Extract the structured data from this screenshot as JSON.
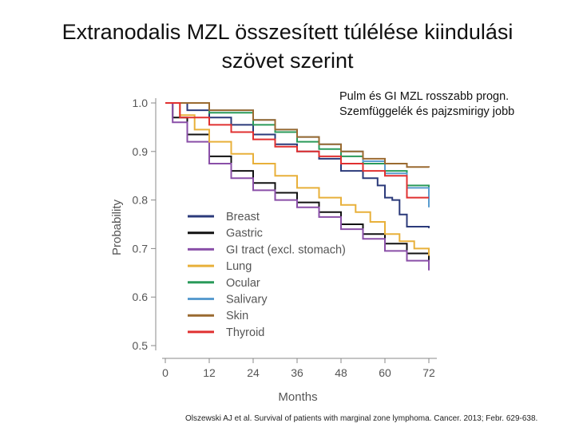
{
  "slide": {
    "title": "Extranodalis MZL összesített túlélése kiindulási szövet szerint",
    "annotation_line1": "Pulm és GI  MZL rosszabb progn.",
    "annotation_line2": "Szemfüggelék és pajzsmirigy jobb",
    "citation": "Olszewski AJ et al. Survival of patients with marginal zone lymphoma. Cancer. 2013; Febr. 629-638."
  },
  "chart_data": {
    "type": "line",
    "title": "",
    "xlabel": "Months",
    "ylabel": "Probability",
    "xlim": [
      0,
      72
    ],
    "ylim": [
      0.5,
      1.0
    ],
    "xticks": [
      0,
      12,
      24,
      36,
      48,
      60,
      72
    ],
    "xtick_labels": [
      "0",
      "12",
      "24",
      "36",
      "48",
      "60",
      "72"
    ],
    "yticks": [
      0.5,
      0.6,
      0.7,
      0.8,
      0.9,
      1.0
    ],
    "ytick_labels": [
      "0.5",
      "0.6",
      "0.7",
      "0.8",
      "0.9",
      "1.0"
    ],
    "legend_position": "bottom-left inside",
    "series": [
      {
        "name": "Breast",
        "color": "#2b3a7a",
        "points": [
          [
            0,
            1.0
          ],
          [
            6,
            0.985
          ],
          [
            12,
            0.97
          ],
          [
            18,
            0.955
          ],
          [
            24,
            0.935
          ],
          [
            30,
            0.915
          ],
          [
            36,
            0.9
          ],
          [
            42,
            0.885
          ],
          [
            48,
            0.86
          ],
          [
            54,
            0.845
          ],
          [
            58,
            0.83
          ],
          [
            60,
            0.805
          ],
          [
            62,
            0.8
          ],
          [
            64,
            0.77
          ],
          [
            66,
            0.745
          ],
          [
            72,
            0.742
          ]
        ]
      },
      {
        "name": "Gastric",
        "color": "#111111",
        "points": [
          [
            0,
            1.0
          ],
          [
            2,
            0.97
          ],
          [
            6,
            0.935
          ],
          [
            12,
            0.89
          ],
          [
            18,
            0.86
          ],
          [
            24,
            0.835
          ],
          [
            30,
            0.815
          ],
          [
            36,
            0.795
          ],
          [
            42,
            0.775
          ],
          [
            48,
            0.75
          ],
          [
            54,
            0.73
          ],
          [
            60,
            0.71
          ],
          [
            66,
            0.69
          ],
          [
            72,
            0.672
          ]
        ]
      },
      {
        "name": "GI tract (excl. stomach)",
        "color": "#8a4fa8",
        "points": [
          [
            0,
            1.0
          ],
          [
            2,
            0.96
          ],
          [
            6,
            0.92
          ],
          [
            12,
            0.875
          ],
          [
            18,
            0.845
          ],
          [
            24,
            0.82
          ],
          [
            30,
            0.8
          ],
          [
            36,
            0.785
          ],
          [
            42,
            0.765
          ],
          [
            48,
            0.74
          ],
          [
            54,
            0.72
          ],
          [
            60,
            0.695
          ],
          [
            66,
            0.675
          ],
          [
            72,
            0.655
          ]
        ]
      },
      {
        "name": "Lung",
        "color": "#e8b03a",
        "points": [
          [
            0,
            1.0
          ],
          [
            4,
            0.975
          ],
          [
            8,
            0.945
          ],
          [
            12,
            0.92
          ],
          [
            18,
            0.895
          ],
          [
            24,
            0.875
          ],
          [
            30,
            0.85
          ],
          [
            36,
            0.825
          ],
          [
            42,
            0.805
          ],
          [
            48,
            0.79
          ],
          [
            52,
            0.775
          ],
          [
            56,
            0.755
          ],
          [
            60,
            0.73
          ],
          [
            64,
            0.715
          ],
          [
            68,
            0.7
          ],
          [
            72,
            0.685
          ]
        ]
      },
      {
        "name": "Ocular",
        "color": "#2a9a5a",
        "points": [
          [
            0,
            1.0
          ],
          [
            12,
            0.98
          ],
          [
            24,
            0.955
          ],
          [
            30,
            0.94
          ],
          [
            36,
            0.92
          ],
          [
            42,
            0.905
          ],
          [
            48,
            0.89
          ],
          [
            54,
            0.875
          ],
          [
            60,
            0.86
          ],
          [
            66,
            0.83
          ],
          [
            72,
            0.81
          ]
        ]
      },
      {
        "name": "Salivary",
        "color": "#5a9ccf",
        "points": [
          [
            0,
            1.0
          ],
          [
            12,
            0.985
          ],
          [
            24,
            0.965
          ],
          [
            30,
            0.945
          ],
          [
            36,
            0.93
          ],
          [
            42,
            0.915
          ],
          [
            48,
            0.9
          ],
          [
            54,
            0.88
          ],
          [
            60,
            0.855
          ],
          [
            66,
            0.825
          ],
          [
            72,
            0.785
          ]
        ]
      },
      {
        "name": "Skin",
        "color": "#9a6a30",
        "points": [
          [
            0,
            1.0
          ],
          [
            12,
            0.985
          ],
          [
            24,
            0.965
          ],
          [
            30,
            0.945
          ],
          [
            36,
            0.93
          ],
          [
            42,
            0.915
          ],
          [
            48,
            0.9
          ],
          [
            54,
            0.885
          ],
          [
            60,
            0.875
          ],
          [
            66,
            0.868
          ],
          [
            72,
            0.867
          ]
        ]
      },
      {
        "name": "Thyroid",
        "color": "#e03030",
        "points": [
          [
            0,
            1.0
          ],
          [
            4,
            0.97
          ],
          [
            12,
            0.955
          ],
          [
            18,
            0.94
          ],
          [
            24,
            0.925
          ],
          [
            30,
            0.91
          ],
          [
            36,
            0.9
          ],
          [
            42,
            0.89
          ],
          [
            48,
            0.875
          ],
          [
            54,
            0.86
          ],
          [
            60,
            0.85
          ],
          [
            66,
            0.805
          ],
          [
            72,
            0.805
          ]
        ]
      }
    ]
  }
}
